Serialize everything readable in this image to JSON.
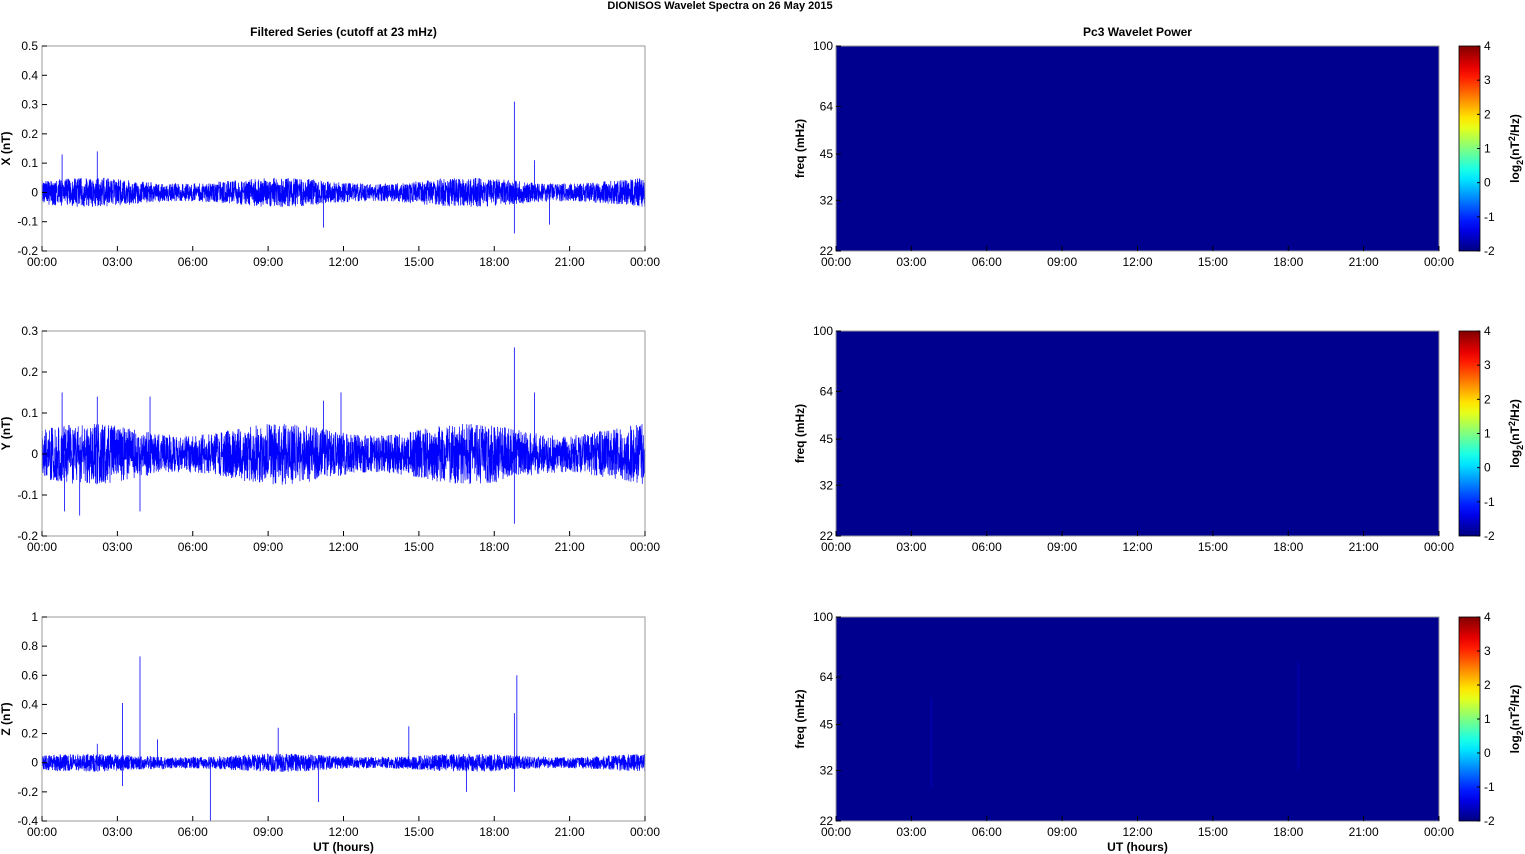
{
  "figure": {
    "title": "DIONISOS Wavelet Spectra on 26 May      2015"
  },
  "time_ticks": [
    "00:00",
    "03:00",
    "06:00",
    "09:00",
    "12:00",
    "15:00",
    "18:00",
    "21:00",
    "00:00"
  ],
  "left_column_title": "Filtered Series (cutoff at 23 mHz)",
  "right_column_title": "Pc3 Wavelet Power",
  "xlabel": "UT (hours)",
  "chart_data": [
    {
      "type": "line",
      "component": "X",
      "ylabel": "X (nT)",
      "ylim": [
        -0.2,
        0.5
      ],
      "yticks": [
        "-0.2",
        "-0.1",
        "0",
        "0.1",
        "0.2",
        "0.3",
        "0.4",
        "0.5"
      ],
      "ytick_values": [
        -0.2,
        -0.1,
        0,
        0.1,
        0.2,
        0.3,
        0.4,
        0.5
      ],
      "xlim_hours": [
        0,
        24
      ],
      "noise_amplitude": 0.04,
      "line_color": "#0000ff",
      "spikes": [
        {
          "hour": 0.8,
          "value": 0.13
        },
        {
          "hour": 2.2,
          "value": 0.14
        },
        {
          "hour": 11.2,
          "value": -0.12
        },
        {
          "hour": 18.8,
          "value": 0.31
        },
        {
          "hour": 18.8,
          "value": -0.14
        },
        {
          "hour": 19.6,
          "value": 0.11
        },
        {
          "hour": 20.2,
          "value": -0.11
        }
      ]
    },
    {
      "type": "line",
      "component": "Y",
      "ylabel": "Y (nT)",
      "ylim": [
        -0.2,
        0.3
      ],
      "yticks": [
        "-0.2",
        "-0.1",
        "0",
        "0.1",
        "0.2",
        "0.3"
      ],
      "ytick_values": [
        -0.2,
        -0.1,
        0,
        0.1,
        0.2,
        0.3
      ],
      "xlim_hours": [
        0,
        24
      ],
      "noise_amplitude": 0.06,
      "line_color": "#0000ff",
      "spikes": [
        {
          "hour": 0.8,
          "value": 0.15
        },
        {
          "hour": 0.9,
          "value": -0.14
        },
        {
          "hour": 1.5,
          "value": -0.15
        },
        {
          "hour": 2.2,
          "value": 0.14
        },
        {
          "hour": 3.9,
          "value": -0.14
        },
        {
          "hour": 4.3,
          "value": 0.14
        },
        {
          "hour": 11.2,
          "value": 0.13
        },
        {
          "hour": 11.9,
          "value": 0.15
        },
        {
          "hour": 18.8,
          "value": 0.26
        },
        {
          "hour": 18.8,
          "value": -0.17
        },
        {
          "hour": 19.6,
          "value": 0.15
        }
      ]
    },
    {
      "type": "line",
      "component": "Z",
      "ylabel": "Z (nT)",
      "ylim": [
        -0.4,
        1
      ],
      "yticks": [
        "-0.4",
        "-0.2",
        "0",
        "0.2",
        "0.4",
        "0.6",
        "0.8",
        "1"
      ],
      "ytick_values": [
        -0.4,
        -0.2,
        0,
        0.2,
        0.4,
        0.6,
        0.8,
        1
      ],
      "xlim_hours": [
        0,
        24
      ],
      "noise_amplitude": 0.05,
      "line_color": "#0000ff",
      "spikes": [
        {
          "hour": 2.2,
          "value": 0.13
        },
        {
          "hour": 3.2,
          "value": 0.41
        },
        {
          "hour": 3.2,
          "value": -0.16
        },
        {
          "hour": 3.9,
          "value": 0.73
        },
        {
          "hour": 4.6,
          "value": 0.16
        },
        {
          "hour": 6.7,
          "value": -0.4
        },
        {
          "hour": 9.4,
          "value": 0.24
        },
        {
          "hour": 11.0,
          "value": -0.27
        },
        {
          "hour": 14.6,
          "value": 0.25
        },
        {
          "hour": 16.9,
          "value": -0.2
        },
        {
          "hour": 18.9,
          "value": 0.6
        },
        {
          "hour": 18.8,
          "value": 0.34
        },
        {
          "hour": 18.8,
          "value": -0.2
        }
      ]
    },
    {
      "type": "heatmap",
      "component": "X",
      "ylabel": "freq (mHz)",
      "yticks": [
        "22",
        "32",
        "45",
        "64",
        "100"
      ],
      "ytick_values": [
        22,
        32,
        45,
        64,
        100
      ],
      "ylim": [
        22,
        100
      ],
      "y_scale": "log",
      "power_log2": -2,
      "background_color": "#00008f",
      "colorbar_label": "log2(nT2/Hz)",
      "colorbar_ticks": [
        "4",
        "3",
        "2",
        "1",
        "0",
        "-1",
        "-2"
      ],
      "colorbar_range": [
        -2,
        4
      ],
      "features": []
    },
    {
      "type": "heatmap",
      "component": "Y",
      "ylabel": "freq (mHz)",
      "yticks": [
        "22",
        "32",
        "45",
        "64",
        "100"
      ],
      "ytick_values": [
        22,
        32,
        45,
        64,
        100
      ],
      "ylim": [
        22,
        100
      ],
      "y_scale": "log",
      "power_log2": -2,
      "background_color": "#00008f",
      "colorbar_label": "log2(nT2/Hz)",
      "colorbar_ticks": [
        "4",
        "3",
        "2",
        "1",
        "0",
        "-1",
        "-2"
      ],
      "colorbar_range": [
        -2,
        4
      ],
      "features": []
    },
    {
      "type": "heatmap",
      "component": "Z",
      "ylabel": "freq (mHz)",
      "yticks": [
        "22",
        "32",
        "45",
        "64",
        "100"
      ],
      "ytick_values": [
        22,
        32,
        45,
        64,
        100
      ],
      "ylim": [
        22,
        100
      ],
      "y_scale": "log",
      "power_log2": -2,
      "background_color": "#00008f",
      "colorbar_label": "log2(nT2/Hz)",
      "colorbar_ticks": [
        "4",
        "3",
        "2",
        "1",
        "0",
        "-1",
        "-2"
      ],
      "colorbar_range": [
        -2,
        4
      ],
      "features": [
        {
          "hour": 3.8,
          "fmin": 28,
          "fmax": 55
        },
        {
          "hour": 18.4,
          "fmin": 32,
          "fmax": 72
        }
      ]
    }
  ]
}
